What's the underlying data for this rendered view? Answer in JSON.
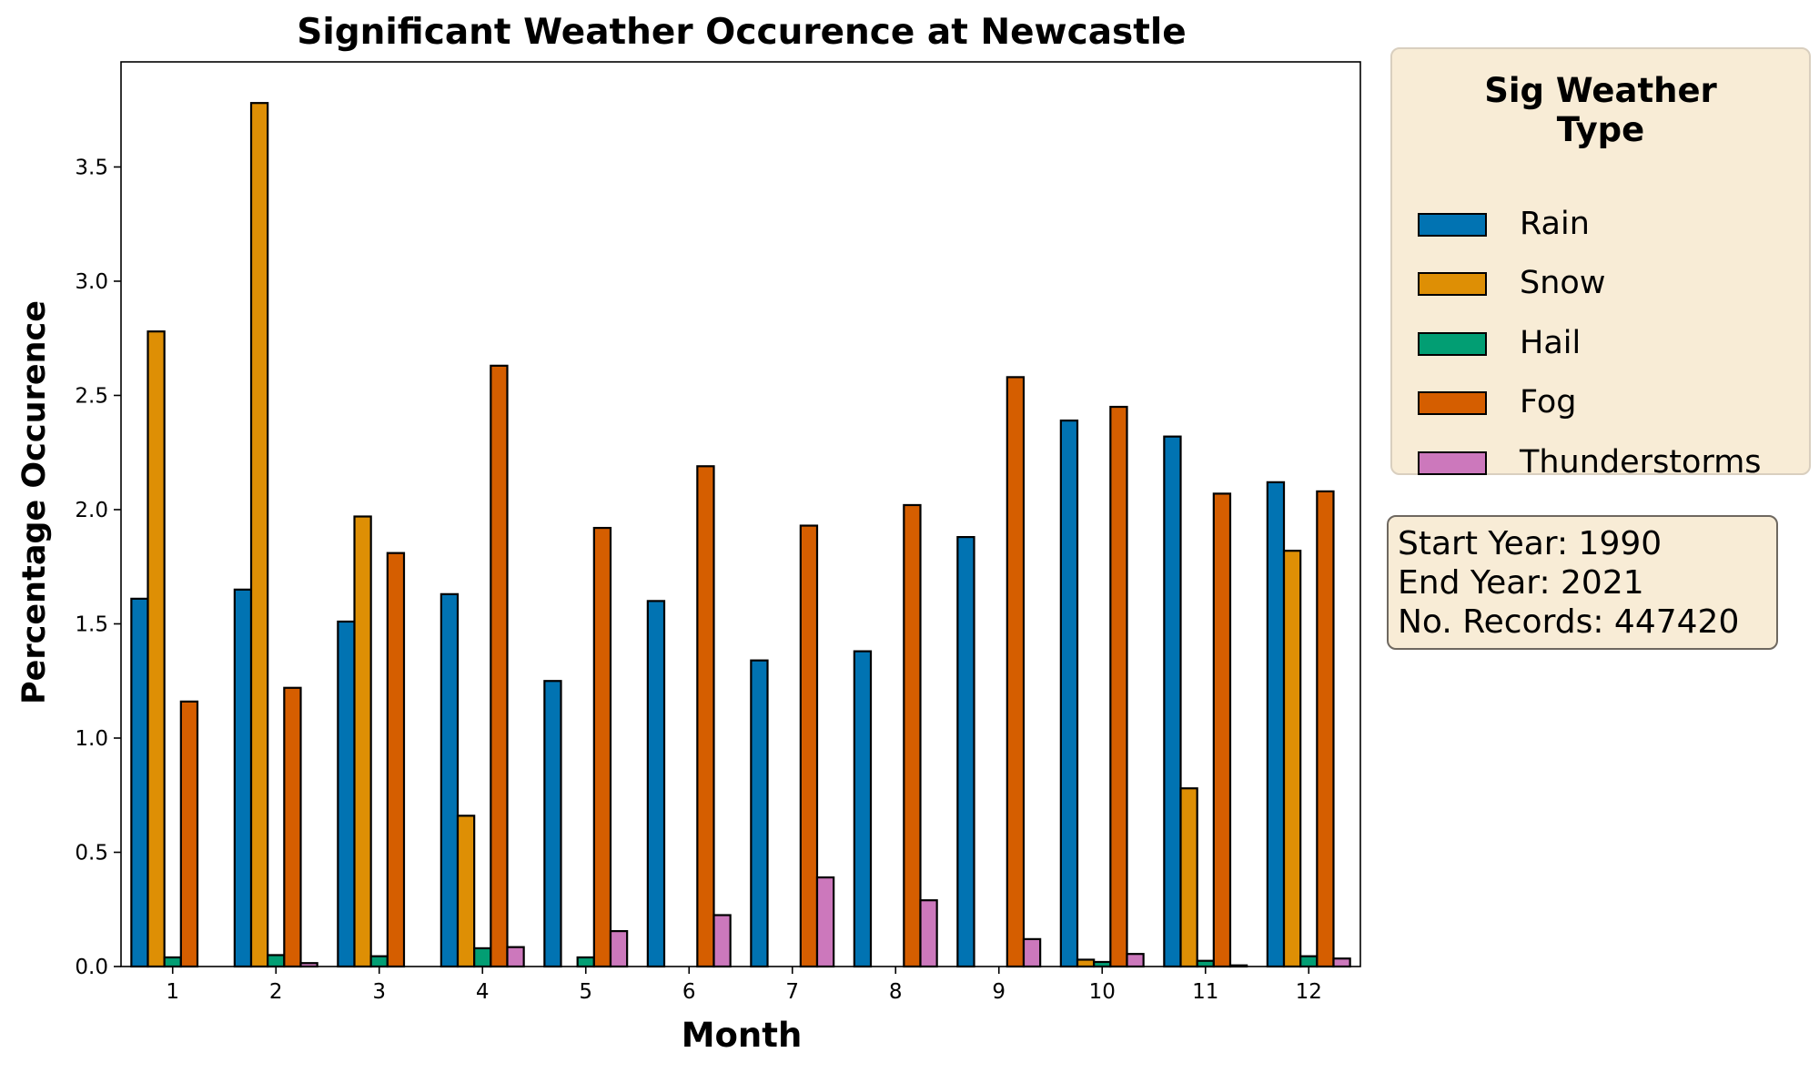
{
  "chart_data": {
    "type": "bar",
    "title": "Significant Weather Occurence at Newcastle",
    "xlabel": "Month",
    "ylabel": "Percentage Occurence",
    "categories": [
      "1",
      "2",
      "3",
      "4",
      "5",
      "6",
      "7",
      "8",
      "9",
      "10",
      "11",
      "12"
    ],
    "ylim": [
      0,
      3.96
    ],
    "yticks": [
      0.0,
      0.5,
      1.0,
      1.5,
      2.0,
      2.5,
      3.0,
      3.5
    ],
    "ytick_labels": [
      "0.0",
      "0.5",
      "1.0",
      "1.5",
      "2.0",
      "2.5",
      "3.0",
      "3.5"
    ],
    "grid": false,
    "legend_position": "outside-right",
    "series": [
      {
        "name": "Rain",
        "color": "#0173b2",
        "values": [
          1.61,
          1.65,
          1.51,
          1.63,
          1.25,
          1.6,
          1.34,
          1.38,
          1.88,
          2.39,
          2.32,
          2.12
        ]
      },
      {
        "name": "Snow",
        "color": "#de8f05",
        "values": [
          2.78,
          3.78,
          1.97,
          0.66,
          0.0,
          0.0,
          0.0,
          0.0,
          0.0,
          0.03,
          0.78,
          1.82
        ]
      },
      {
        "name": "Hail",
        "color": "#029e73",
        "values": [
          0.04,
          0.05,
          0.045,
          0.08,
          0.04,
          0.0,
          0.0,
          0.0,
          0.0,
          0.02,
          0.025,
          0.045
        ]
      },
      {
        "name": "Fog",
        "color": "#d55e00",
        "values": [
          1.16,
          1.22,
          1.81,
          2.63,
          1.92,
          2.19,
          1.93,
          2.02,
          2.58,
          2.45,
          2.07,
          2.08
        ]
      },
      {
        "name": "Thunderstorms",
        "color": "#cc78bc",
        "values": [
          0.0,
          0.015,
          0.0,
          0.085,
          0.155,
          0.225,
          0.39,
          0.29,
          0.12,
          0.055,
          0.005,
          0.035
        ]
      }
    ]
  },
  "legend": {
    "title_line1": "Sig Weather",
    "title_line2": "Type"
  },
  "info": {
    "start_year": "Start Year: 1990",
    "end_year": "End Year: 2021",
    "records": "No. Records: 447420"
  }
}
